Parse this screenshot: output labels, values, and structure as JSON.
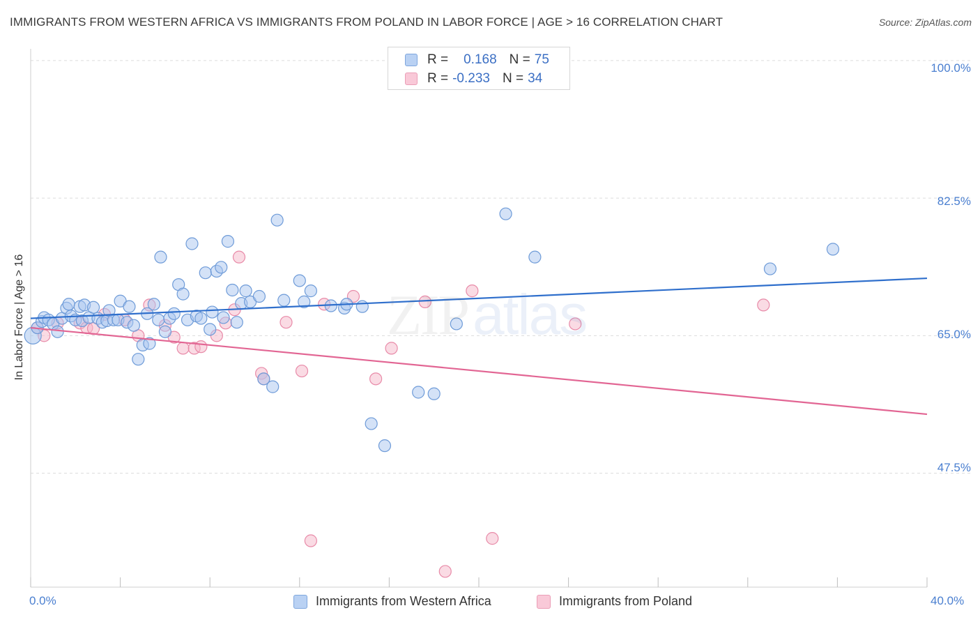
{
  "title": "IMMIGRANTS FROM WESTERN AFRICA VS IMMIGRANTS FROM POLAND IN LABOR FORCE | AGE > 16 CORRELATION CHART",
  "source": "Source: ZipAtlas.com",
  "watermark": {
    "zip": "ZIP",
    "atlas": "atlas"
  },
  "legend": {
    "series1": {
      "r_label": "R =",
      "r_value": "0.168",
      "n_label": "N =",
      "n_value": "75"
    },
    "series2": {
      "r_label": "R =",
      "r_value": "-0.233",
      "n_label": "N =",
      "n_value": "34"
    }
  },
  "colors": {
    "blue_fill": "#a9c6ef",
    "blue_stroke": "#6e9bd8",
    "blue_line": "#2f6fcc",
    "pink_fill": "#f5b7ca",
    "pink_stroke": "#e88aa8",
    "pink_line": "#e26593",
    "grid": "#dcdcdc",
    "tick_text": "#4a7fd0"
  },
  "chart_data": {
    "type": "scatter",
    "title": "IMMIGRANTS FROM WESTERN AFRICA VS IMMIGRANTS FROM POLAND IN LABOR FORCE | AGE > 16 CORRELATION CHART",
    "xlabel": "",
    "ylabel": "In Labor Force | Age > 16",
    "xlim": [
      0,
      40
    ],
    "ylim": [
      33,
      101.5
    ],
    "x_tick_labels": [
      {
        "value": 0,
        "label": "0.0%"
      },
      {
        "value": 40,
        "label": "40.0%"
      }
    ],
    "y_tick_labels": [
      {
        "value": 100,
        "label": "100.0%"
      },
      {
        "value": 82.5,
        "label": "82.5%"
      },
      {
        "value": 65,
        "label": "65.0%"
      },
      {
        "value": 47.5,
        "label": "47.5%"
      }
    ],
    "y_gridlines": [
      100,
      82.5,
      65,
      47.5
    ],
    "x_minor_ticks": [
      0,
      4,
      8,
      12,
      16,
      20,
      24,
      28,
      32,
      36,
      40
    ],
    "series": [
      {
        "name": "Immigrants from Western Africa",
        "color": "#a9c6ef",
        "trend": {
          "x": [
            0,
            40
          ],
          "y": [
            67.2,
            72.3
          ]
        },
        "points": [
          [
            0.1,
            65.0
          ],
          [
            0.3,
            66.0
          ],
          [
            0.5,
            66.8
          ],
          [
            0.6,
            67.3
          ],
          [
            0.8,
            67.0
          ],
          [
            1.0,
            66.5
          ],
          [
            1.2,
            65.5
          ],
          [
            1.4,
            67.2
          ],
          [
            1.6,
            68.5
          ],
          [
            1.7,
            69.0
          ],
          [
            1.8,
            67.5
          ],
          [
            2.0,
            67.0
          ],
          [
            2.2,
            68.7
          ],
          [
            2.3,
            66.9
          ],
          [
            2.4,
            68.9
          ],
          [
            2.6,
            67.3
          ],
          [
            2.8,
            68.6
          ],
          [
            3.0,
            67.2
          ],
          [
            3.2,
            66.7
          ],
          [
            3.4,
            66.9
          ],
          [
            3.5,
            68.2
          ],
          [
            3.7,
            67.0
          ],
          [
            3.9,
            67.0
          ],
          [
            4.0,
            69.4
          ],
          [
            4.3,
            66.7
          ],
          [
            4.4,
            68.7
          ],
          [
            4.6,
            66.3
          ],
          [
            4.8,
            62.0
          ],
          [
            5.0,
            63.8
          ],
          [
            5.2,
            67.8
          ],
          [
            5.3,
            64.0
          ],
          [
            5.5,
            69.0
          ],
          [
            5.7,
            67.0
          ],
          [
            5.8,
            75.0
          ],
          [
            6.0,
            65.5
          ],
          [
            6.2,
            67.2
          ],
          [
            6.4,
            67.8
          ],
          [
            6.6,
            71.5
          ],
          [
            6.8,
            70.3
          ],
          [
            7.0,
            67.0
          ],
          [
            7.2,
            76.7
          ],
          [
            7.4,
            67.5
          ],
          [
            7.6,
            67.2
          ],
          [
            7.8,
            73.0
          ],
          [
            8.0,
            65.8
          ],
          [
            8.1,
            68.0
          ],
          [
            8.3,
            73.2
          ],
          [
            8.5,
            73.7
          ],
          [
            8.6,
            67.3
          ],
          [
            8.8,
            77.0
          ],
          [
            9.0,
            70.8
          ],
          [
            9.2,
            66.7
          ],
          [
            9.4,
            69.1
          ],
          [
            9.6,
            70.7
          ],
          [
            9.8,
            69.3
          ],
          [
            10.2,
            70.0
          ],
          [
            10.4,
            59.5
          ],
          [
            10.8,
            58.5
          ],
          [
            11.0,
            79.7
          ],
          [
            11.3,
            69.5
          ],
          [
            12.0,
            72.0
          ],
          [
            12.2,
            69.3
          ],
          [
            12.5,
            70.7
          ],
          [
            13.4,
            68.8
          ],
          [
            14.0,
            68.5
          ],
          [
            14.1,
            69.0
          ],
          [
            14.8,
            68.7
          ],
          [
            15.2,
            53.8
          ],
          [
            15.8,
            51.0
          ],
          [
            17.3,
            57.8
          ],
          [
            18.0,
            57.6
          ],
          [
            19.0,
            66.5
          ],
          [
            21.2,
            80.5
          ],
          [
            22.5,
            75.0
          ],
          [
            33.0,
            73.5
          ],
          [
            35.8,
            76.0
          ]
        ]
      },
      {
        "name": "Immigrants from Poland",
        "color": "#f5b7ca",
        "trend": {
          "x": [
            0,
            40
          ],
          "y": [
            66.0,
            55.0
          ]
        },
        "points": [
          [
            0.3,
            66.0
          ],
          [
            0.6,
            65.0
          ],
          [
            1.2,
            66.6
          ],
          [
            2.2,
            66.6
          ],
          [
            2.5,
            66.0
          ],
          [
            2.8,
            65.9
          ],
          [
            3.3,
            67.7
          ],
          [
            4.2,
            67.0
          ],
          [
            4.8,
            65.0
          ],
          [
            5.3,
            68.9
          ],
          [
            6.0,
            66.3
          ],
          [
            6.4,
            64.8
          ],
          [
            6.8,
            63.4
          ],
          [
            7.3,
            63.4
          ],
          [
            7.6,
            63.6
          ],
          [
            8.3,
            65.0
          ],
          [
            8.7,
            66.6
          ],
          [
            9.1,
            68.3
          ],
          [
            9.3,
            75.0
          ],
          [
            10.3,
            60.2
          ],
          [
            10.4,
            59.5
          ],
          [
            11.4,
            66.7
          ],
          [
            12.1,
            60.5
          ],
          [
            12.5,
            38.9
          ],
          [
            13.1,
            69.0
          ],
          [
            14.4,
            70.0
          ],
          [
            15.4,
            59.5
          ],
          [
            16.1,
            63.4
          ],
          [
            17.6,
            69.3
          ],
          [
            18.5,
            35.0
          ],
          [
            19.7,
            70.7
          ],
          [
            20.6,
            39.2
          ],
          [
            24.3,
            66.5
          ],
          [
            32.7,
            68.9
          ]
        ]
      }
    ]
  },
  "bottom_legend": {
    "series1_label": "Immigrants from Western Africa",
    "series2_label": "Immigrants from Poland"
  }
}
